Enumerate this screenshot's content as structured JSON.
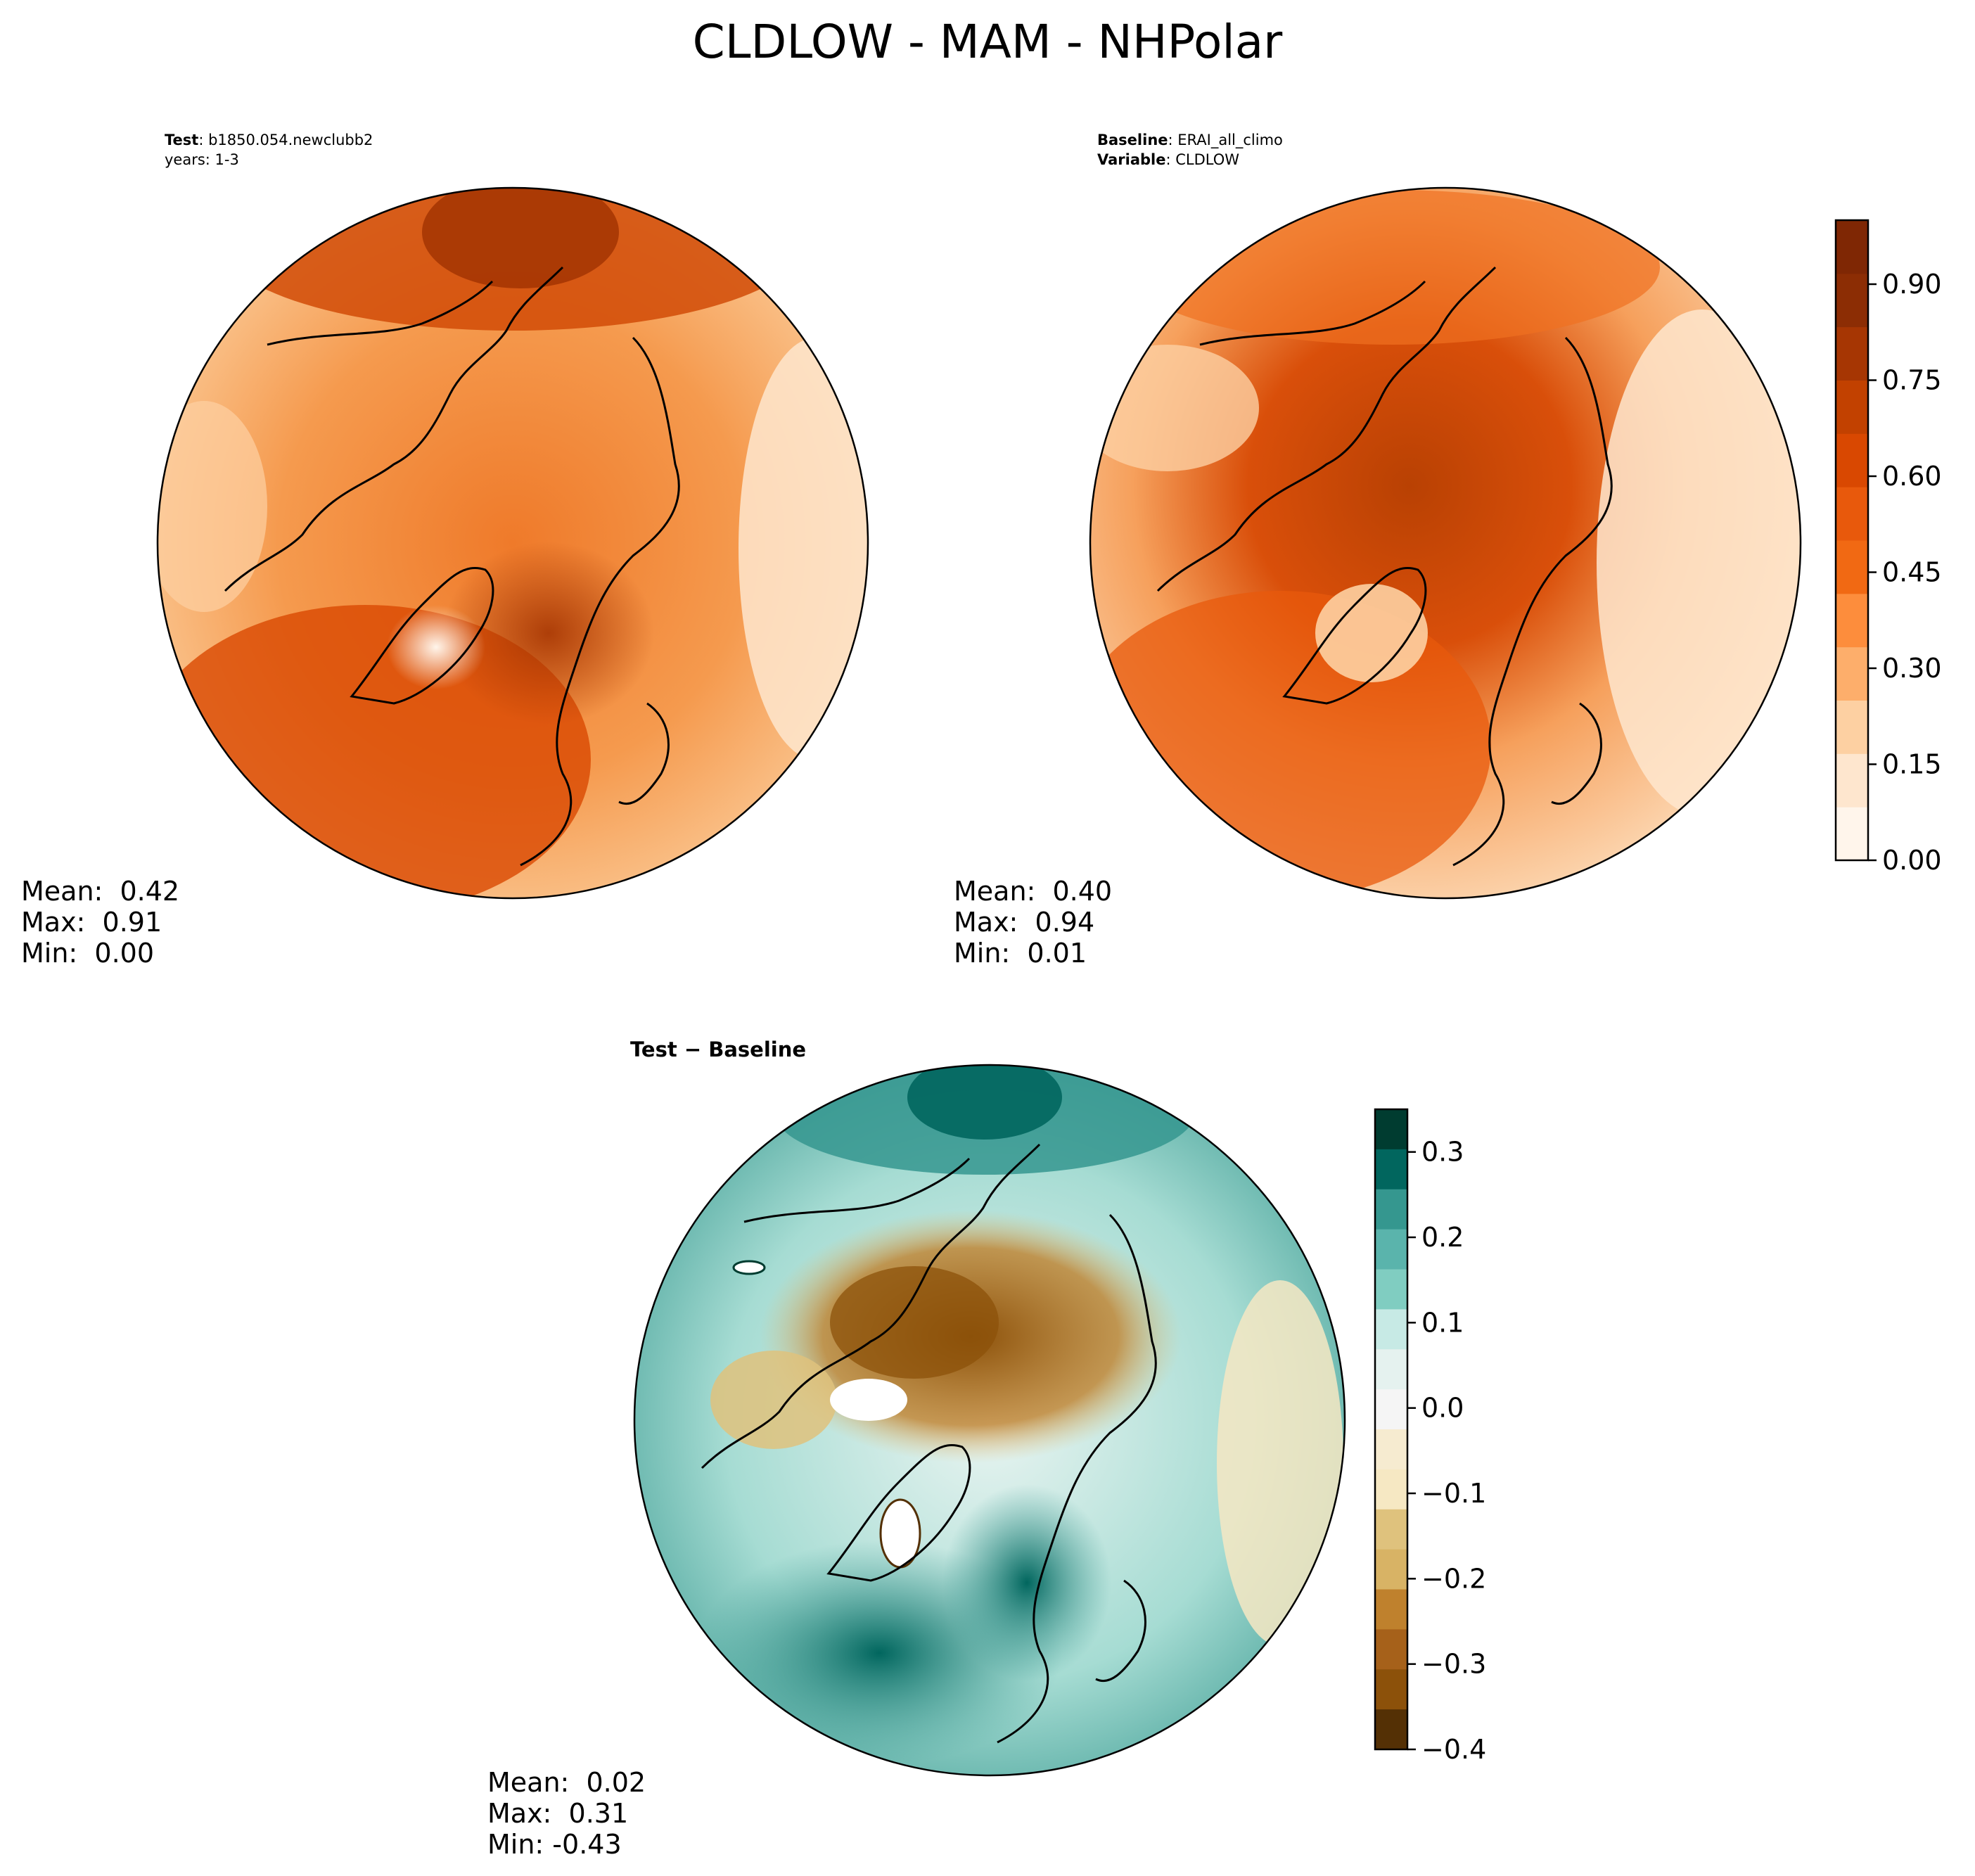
{
  "figure": {
    "title": "CLDLOW - MAM - NHPolar"
  },
  "panels": {
    "test": {
      "label_key": "Test",
      "label_value": "b1850.054.newclubb2",
      "sub_line": "years: 1-3",
      "stats": {
        "mean": "Mean:  0.42",
        "max": "Max:  0.91",
        "min": "Min:  0.00"
      }
    },
    "baseline": {
      "label_key": "Baseline",
      "label_value": "ERAI_all_climo",
      "sub_key": "Variable",
      "sub_value": "CLDLOW",
      "stats": {
        "mean": "Mean:  0.40",
        "max": "Max:  0.94",
        "min": "Min:  0.01"
      }
    },
    "diff": {
      "title": "Test − Baseline",
      "stats": {
        "mean": "Mean:  0.02",
        "max": "Max:  0.31",
        "min": "Min: -0.43"
      }
    }
  },
  "chart_data": [
    {
      "type": "heatmap",
      "panel": "test",
      "projection": "north-polar-stereographic",
      "variable": "CLDLOW",
      "season": "MAM",
      "mean": 0.42,
      "max": 0.91,
      "min": 0.0,
      "colormap": "Oranges",
      "clim": [
        0.0,
        1.0
      ]
    },
    {
      "type": "heatmap",
      "panel": "baseline",
      "projection": "north-polar-stereographic",
      "variable": "CLDLOW",
      "season": "MAM",
      "mean": 0.4,
      "max": 0.94,
      "min": 0.01,
      "colormap": "Oranges",
      "clim": [
        0.0,
        1.0
      ],
      "colorbar_ticks": [
        "0.00",
        "0.15",
        "0.30",
        "0.45",
        "0.60",
        "0.75",
        "0.90"
      ],
      "colorbar_colors": [
        "#fff5eb",
        "#fee6ce",
        "#fdd0a2",
        "#fdae6b",
        "#fd8d3c",
        "#f16913",
        "#e8590c",
        "#d94801",
        "#c24100",
        "#a63603",
        "#8c2d04",
        "#7f2704"
      ]
    },
    {
      "type": "heatmap",
      "panel": "diff",
      "projection": "north-polar-stereographic",
      "variable": "CLDLOW difference",
      "mean": 0.02,
      "max": 0.31,
      "min": -0.43,
      "colormap": "BrBG",
      "clim": [
        -0.4,
        0.35
      ],
      "colorbar_ticks": [
        "0.3",
        "0.2",
        "0.1",
        "0.0",
        "−0.1",
        "−0.2",
        "−0.3",
        "−0.4"
      ],
      "colorbar_colors": [
        "#003c30",
        "#01665e",
        "#35978f",
        "#5ab4ac",
        "#80cdc1",
        "#c7eae5",
        "#e5f2ef",
        "#f5f5f5",
        "#f6ebd0",
        "#f6e8c3",
        "#dfc27d",
        "#d8b365",
        "#bf812d",
        "#a6611a",
        "#8c510a",
        "#543005"
      ]
    }
  ],
  "colors": {
    "test_base": "#f08a3c",
    "baseline_base": "#f49a55",
    "diff_base": "#bfe5df"
  }
}
